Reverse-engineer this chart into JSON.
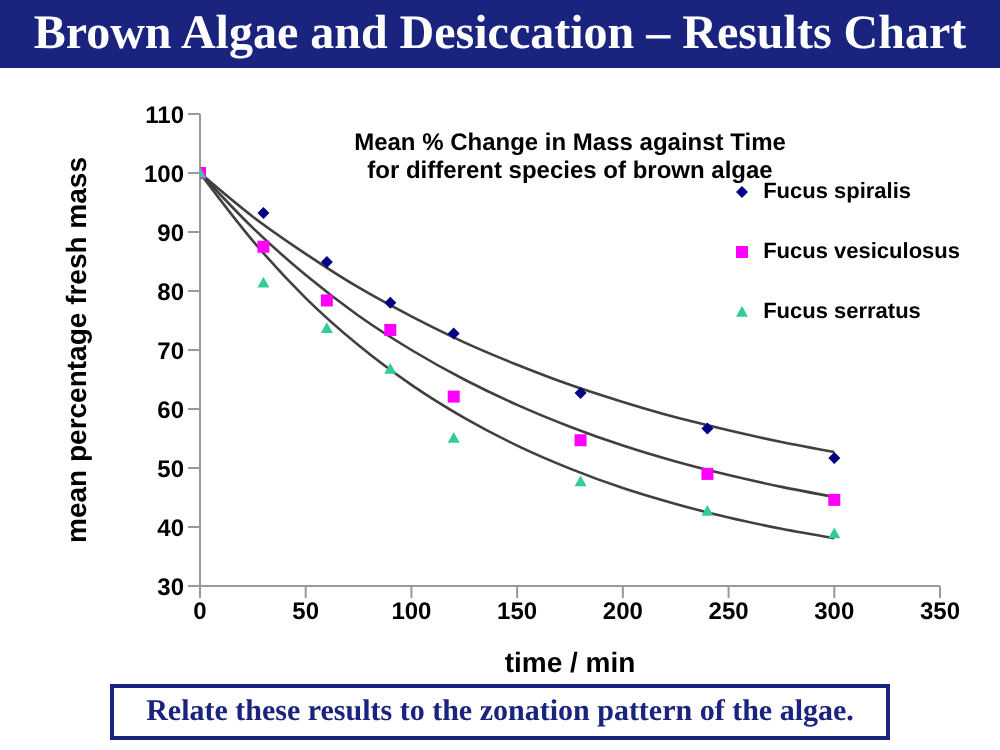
{
  "chart_data": {
    "type": "scatter",
    "title": "Brown Algae and Desiccation – Results Chart",
    "subtitle": "Mean % Change in Mass against Time\nfor different species of brown algae",
    "xlabel": "time / min",
    "ylabel": "mean percentage fresh mass",
    "annotations": [
      "Relate these results to the zonation pattern of the algae."
    ],
    "x": [
      0,
      30,
      60,
      90,
      120,
      180,
      240,
      300
    ],
    "series": [
      {
        "name": "Fucus spiralis",
        "color": "#000080",
        "marker": "diamond",
        "values": [
          null,
          93.2,
          84.9,
          78,
          72.8,
          62.7,
          56.7,
          51.7
        ]
      },
      {
        "name": "Fucus vesiculosus",
        "color": "#ff00ff",
        "marker": "square",
        "values": [
          100,
          87.5,
          78.4,
          73.4,
          62.1,
          54.7,
          49,
          44.6
        ]
      },
      {
        "name": "Fucus serratus",
        "color": "#33cc99",
        "marker": "triangle",
        "values": [
          100,
          81.4,
          73.7,
          66.8,
          55.1,
          47.7,
          42.7,
          38.9
        ]
      },
      {
        "type": "line",
        "color": "#404040",
        "marker": "none",
        "x": [
          0,
          25,
          50,
          75,
          100,
          125,
          150,
          175,
          200,
          225,
          250,
          275,
          300
        ],
        "values": [
          100,
          92.6,
          86.3,
          80.6,
          75.7,
          71.3,
          67.5,
          64.1,
          61.2,
          58.6,
          56.4,
          54.4,
          52.7
        ]
      },
      {
        "type": "line",
        "color": "#404040",
        "marker": "none",
        "x": [
          0,
          25,
          50,
          75,
          100,
          125,
          150,
          175,
          200,
          225,
          250,
          275,
          300
        ],
        "values": [
          100,
          90.7,
          82.7,
          75.8,
          70,
          65,
          60.7,
          57,
          53.8,
          51.1,
          48.8,
          46.8,
          45.1
        ]
      },
      {
        "type": "line",
        "color": "#404040",
        "marker": "none",
        "x": [
          0,
          25,
          50,
          75,
          100,
          125,
          150,
          175,
          200,
          225,
          250,
          275,
          300
        ],
        "values": [
          100,
          88.5,
          78.8,
          70.8,
          64.1,
          58.5,
          53.8,
          49.9,
          46.6,
          43.9,
          41.6,
          39.7,
          38.1
        ]
      }
    ],
    "xlim": [
      0,
      350
    ],
    "xticks": [
      0,
      50,
      100,
      150,
      200,
      250,
      300,
      350
    ],
    "ylim": [
      30,
      110
    ],
    "yticks": [
      30,
      40,
      50,
      60,
      70,
      80,
      90,
      100,
      110
    ],
    "grid": false,
    "legend": "top right"
  }
}
